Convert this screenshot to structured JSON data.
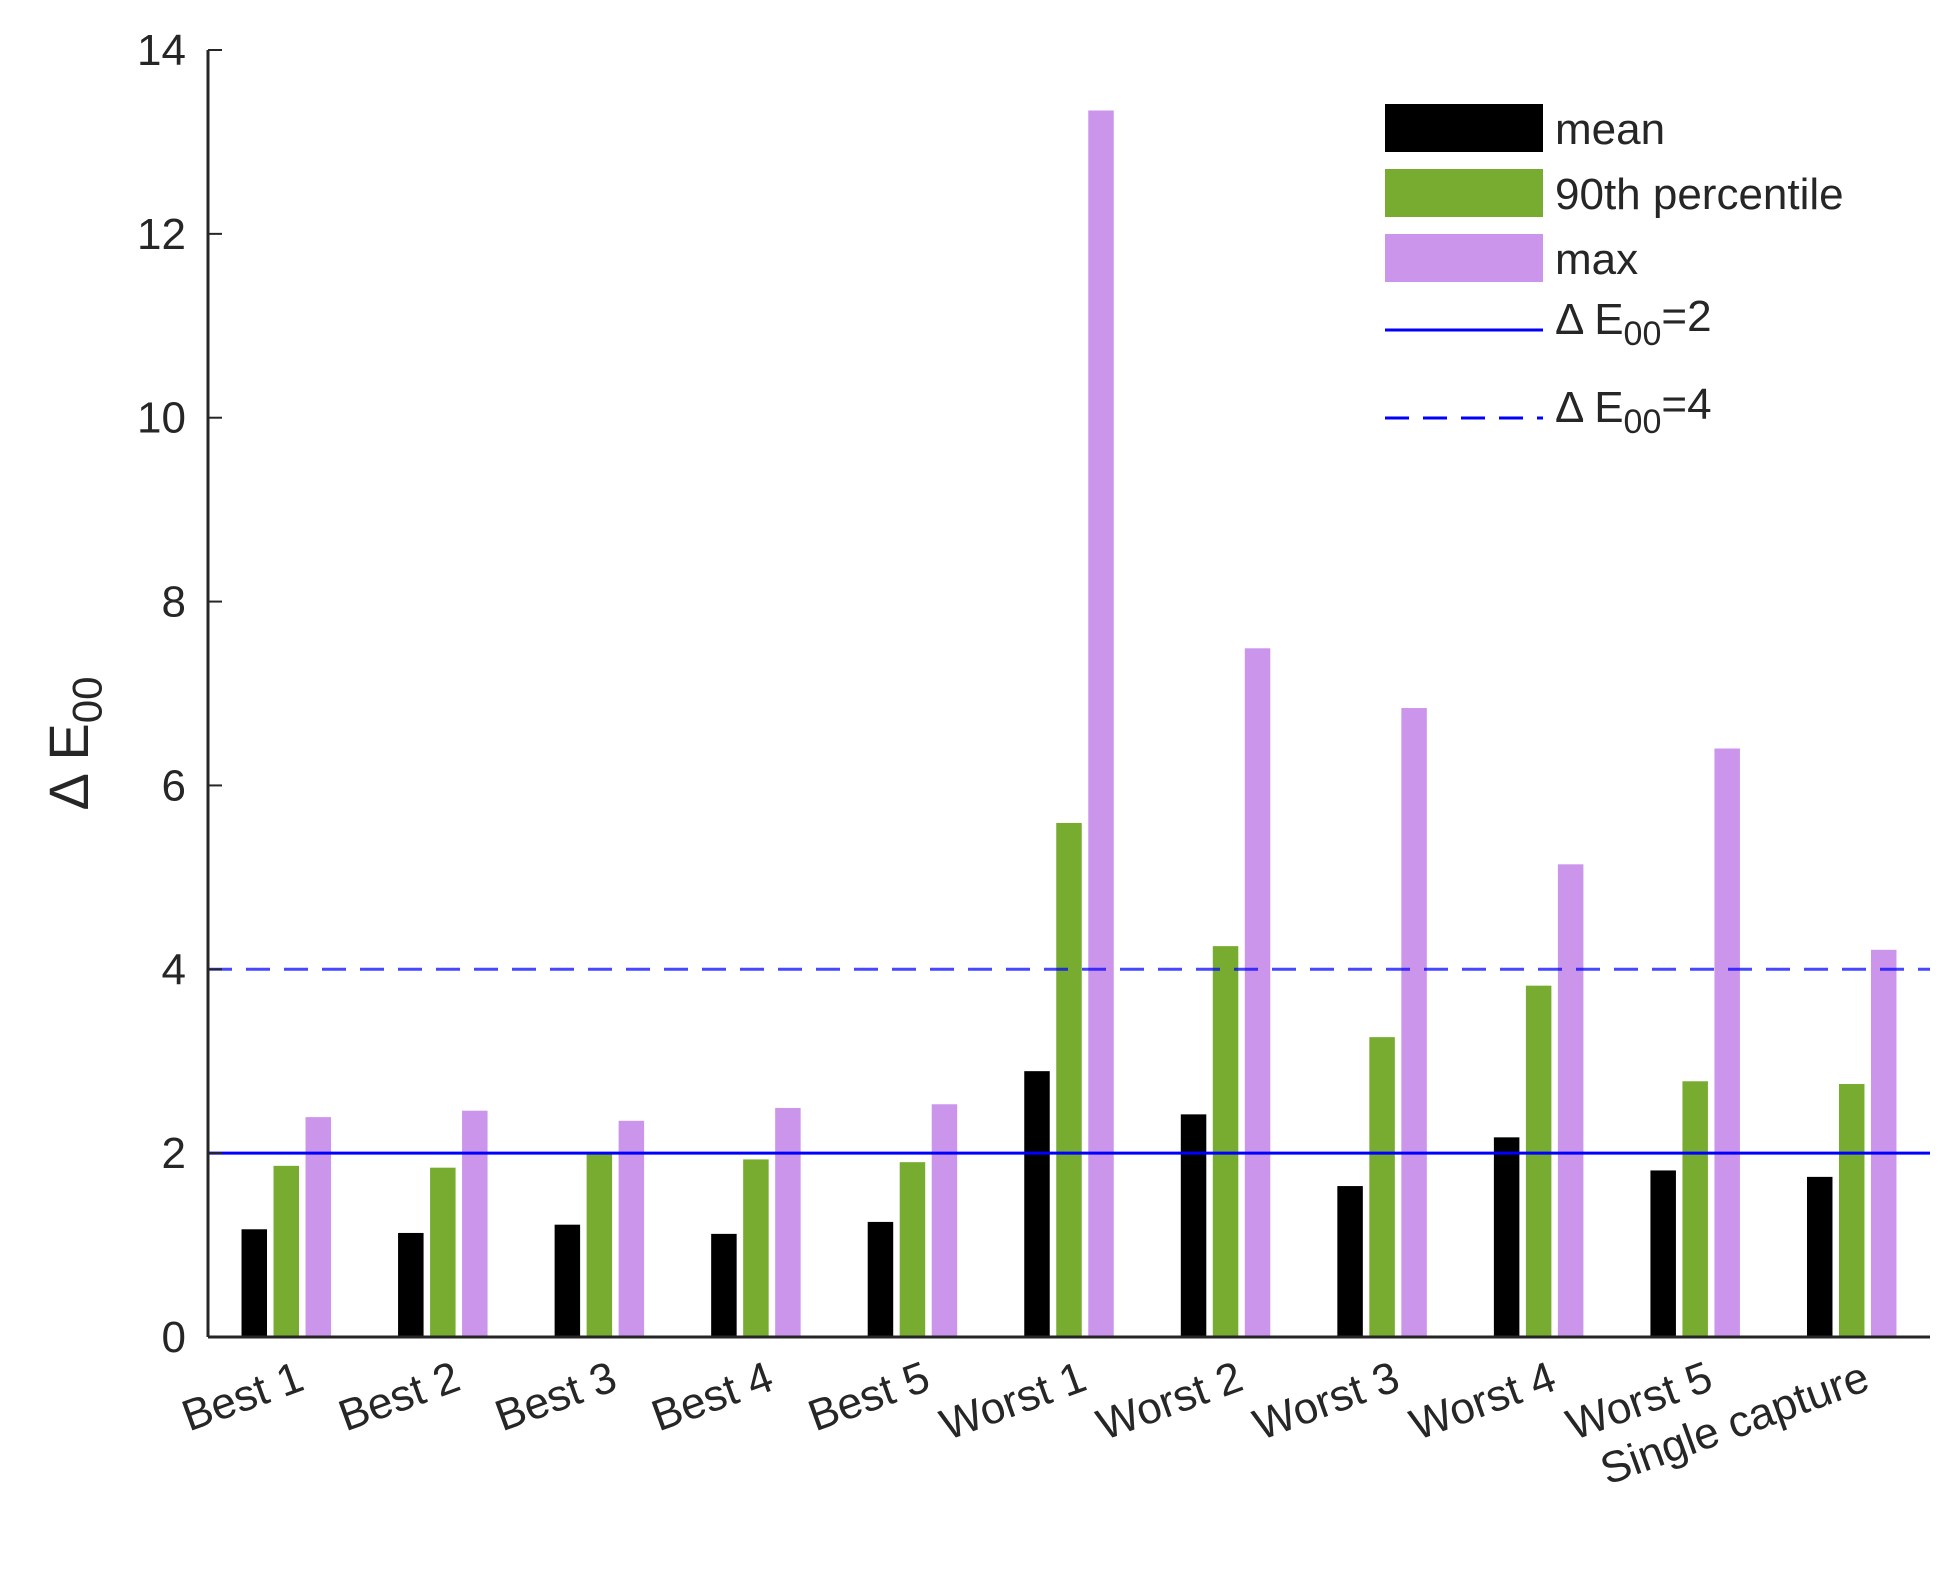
{
  "chart_data": {
    "type": "bar",
    "categories": [
      "Best 1",
      "Best 2",
      "Best 3",
      "Best 4",
      "Best 5",
      "Worst 1",
      "Worst 2",
      "Worst 3",
      "Worst 4",
      "Worst 5",
      "Single capture"
    ],
    "series": [
      {
        "name": "mean",
        "color": "#000000",
        "values": [
          1.18,
          1.14,
          1.23,
          1.13,
          1.26,
          2.9,
          2.43,
          1.65,
          2.18,
          1.82,
          1.75
        ]
      },
      {
        "name": "90th percentile",
        "color": "#77AC30",
        "values": [
          1.87,
          1.85,
          2.0,
          1.94,
          1.91,
          5.6,
          4.26,
          3.27,
          3.83,
          2.79,
          2.76
        ]
      },
      {
        "name": "max",
        "color": "#CC95EC",
        "values": [
          2.4,
          2.47,
          2.36,
          2.5,
          2.54,
          13.35,
          7.5,
          6.85,
          5.15,
          6.41,
          4.22
        ]
      }
    ],
    "reference_lines": [
      {
        "label_prefix": "Δ E",
        "label_sub": "00",
        "label_suffix": "=2",
        "y": 2,
        "style": "solid",
        "color": "#0000FF"
      },
      {
        "label_prefix": "Δ E",
        "label_sub": "00",
        "label_suffix": "=4",
        "y": 4,
        "style": "dashed",
        "color": "#0000FF"
      }
    ],
    "ylabel": {
      "prefix": "Δ E",
      "sub": "00"
    },
    "xlabel": "",
    "title": "",
    "ylim": [
      0,
      14
    ],
    "yticks": [
      0,
      2,
      4,
      6,
      8,
      10,
      12,
      14
    ],
    "grid": false,
    "legend_position": "top-right"
  }
}
